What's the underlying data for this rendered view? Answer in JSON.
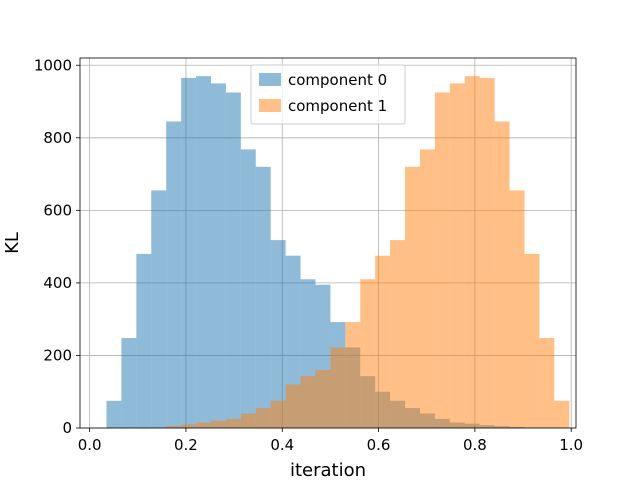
{
  "chart_data": {
    "type": "histogram",
    "xlabel": "iteration",
    "ylabel": "KL",
    "xlim": [
      0.0,
      1.0
    ],
    "ylim": [
      0,
      1000
    ],
    "x_ticks": [
      0.0,
      0.2,
      0.4,
      0.6,
      0.8,
      1.0
    ],
    "x_tick_labels": [
      "0.0",
      "0.2",
      "0.4",
      "0.6",
      "0.8",
      "1.0"
    ],
    "y_ticks": [
      0,
      200,
      400,
      600,
      800,
      1000
    ],
    "y_tick_labels": [
      "0",
      "200",
      "400",
      "600",
      "800",
      "1000"
    ],
    "grid": true,
    "legend_position": "upper-center",
    "series": [
      {
        "name": "component 0",
        "color": "#1f77b4",
        "alpha": 0.5,
        "bins": [
          [
            0.035,
            0.066,
            75
          ],
          [
            0.066,
            0.097,
            248
          ],
          [
            0.097,
            0.128,
            480
          ],
          [
            0.128,
            0.159,
            655
          ],
          [
            0.159,
            0.19,
            845
          ],
          [
            0.19,
            0.221,
            965
          ],
          [
            0.221,
            0.252,
            970
          ],
          [
            0.252,
            0.283,
            950
          ],
          [
            0.283,
            0.314,
            925
          ],
          [
            0.314,
            0.345,
            768
          ],
          [
            0.345,
            0.376,
            720
          ],
          [
            0.376,
            0.407,
            518
          ],
          [
            0.407,
            0.438,
            475
          ],
          [
            0.438,
            0.469,
            410
          ],
          [
            0.469,
            0.5,
            395
          ],
          [
            0.5,
            0.531,
            292
          ],
          [
            0.531,
            0.562,
            222
          ],
          [
            0.562,
            0.593,
            143
          ],
          [
            0.593,
            0.624,
            100
          ],
          [
            0.624,
            0.655,
            75
          ],
          [
            0.655,
            0.686,
            55
          ],
          [
            0.686,
            0.717,
            40
          ],
          [
            0.717,
            0.748,
            25
          ],
          [
            0.748,
            0.779,
            15
          ],
          [
            0.779,
            0.81,
            12
          ],
          [
            0.81,
            0.841,
            8
          ],
          [
            0.841,
            0.872,
            5
          ],
          [
            0.872,
            0.903,
            3
          ]
        ]
      },
      {
        "name": "component 1",
        "color": "#ff7f0e",
        "alpha": 0.5,
        "bins": [
          [
            0.159,
            0.19,
            5
          ],
          [
            0.19,
            0.221,
            10
          ],
          [
            0.221,
            0.252,
            15
          ],
          [
            0.252,
            0.283,
            20
          ],
          [
            0.283,
            0.314,
            25
          ],
          [
            0.314,
            0.345,
            40
          ],
          [
            0.345,
            0.376,
            55
          ],
          [
            0.376,
            0.407,
            75
          ],
          [
            0.407,
            0.438,
            120
          ],
          [
            0.438,
            0.469,
            143
          ],
          [
            0.469,
            0.5,
            160
          ],
          [
            0.5,
            0.531,
            222
          ],
          [
            0.531,
            0.562,
            292
          ],
          [
            0.562,
            0.593,
            410
          ],
          [
            0.593,
            0.624,
            475
          ],
          [
            0.624,
            0.655,
            518
          ],
          [
            0.655,
            0.686,
            720
          ],
          [
            0.686,
            0.717,
            768
          ],
          [
            0.717,
            0.748,
            925
          ],
          [
            0.748,
            0.779,
            950
          ],
          [
            0.779,
            0.81,
            970
          ],
          [
            0.81,
            0.841,
            965
          ],
          [
            0.841,
            0.872,
            845
          ],
          [
            0.872,
            0.903,
            655
          ],
          [
            0.903,
            0.934,
            480
          ],
          [
            0.934,
            0.965,
            248
          ],
          [
            0.965,
            0.996,
            75
          ]
        ]
      }
    ]
  }
}
